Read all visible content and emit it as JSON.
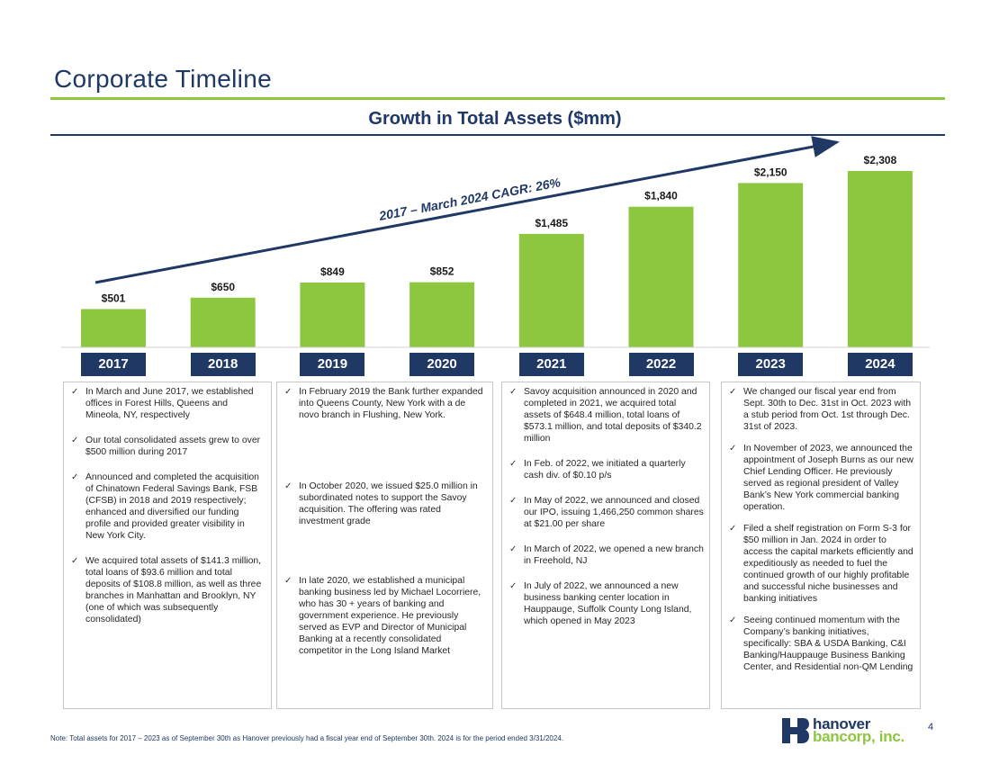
{
  "page": {
    "title": "Corporate Timeline",
    "page_number": "4"
  },
  "colors": {
    "bar": "#8dc63f",
    "navy": "#1f3864"
  },
  "chart_data": {
    "type": "bar",
    "title": "Growth in Total Assets ($mm)",
    "categories": [
      "2017",
      "2018",
      "2019",
      "2020",
      "2021",
      "2022",
      "2023",
      "2024"
    ],
    "values": [
      501,
      650,
      849,
      852,
      1485,
      1840,
      2150,
      2308
    ],
    "data_labels": [
      "$501",
      "$650",
      "$849",
      "$852",
      "$1,485",
      "$1,840",
      "$2,150",
      "$2,308"
    ],
    "annotation": "2017 – March 2024  CAGR: 26%",
    "ylim": [
      0,
      2400
    ],
    "grid": false
  },
  "columns": [
    {
      "items": [
        "In March and June 2017, we established offices in Forest Hills, Queens and Mineola, NY, respectively",
        "Our total consolidated assets grew to over $500 million during 2017",
        "Announced and completed the acquisition of Chinatown Federal Savings Bank, FSB (CFSB) in 2018 and 2019 respectively; enhanced and diversified our funding profile and provided greater visibility in New York City.",
        "We acquired total assets of $141.3 million, total loans of $93.6 million and total deposits of $108.8 million, as well as three branches in Manhattan and Brooklyn, NY (one of which was subsequently consolidated)"
      ]
    },
    {
      "items": [
        "In February 2019 the Bank further expanded into Queens County, New York with a de novo branch in Flushing, New York.",
        "In October 2020, we issued $25.0 million in subordinated notes to support the Savoy acquisition. The offering was rated investment grade",
        "In late 2020, we established a municipal banking business led by Michael Locorriere, who has 30 + years of banking and government experience. He previously served as EVP and Director of Municipal Banking at a recently consolidated competitor in the Long Island Market"
      ]
    },
    {
      "items": [
        "Savoy acquisition announced in 2020 and completed in 2021, we acquired total assets of $648.4 million, total loans of $573.1 million, and total deposits of $340.2 million",
        "In Feb. of 2022, we initiated a quarterly cash div. of $0.10 p/s",
        "In May of 2022, we announced and closed our IPO, issuing 1,466,250 common shares at $21.00 per share",
        "In March of 2022, we opened a new branch in Freehold, NJ",
        "In July of 2022, we announced a new business banking center location in Hauppauge, Suffolk County Long Island, which opened in May 2023"
      ]
    },
    {
      "items": [
        "We changed our fiscal year end from Sept. 30th to Dec. 31st in Oct. 2023 with a stub period from Oct. 1st through Dec. 31st of 2023.",
        "In November of 2023, we announced the appointment of Joseph Burns as our new Chief Lending Officer. He previously served as regional president of Valley Bank’s New York commercial banking operation.",
        "Filed a shelf registration on Form S-3 for $50 million in Jan. 2024 in order to access the capital markets efficiently and expeditiously as needed to fuel the continued growth of our highly profitable and successful niche businesses and banking initiatives",
        "Seeing continued momentum with the Company’s banking initiatives, specifically: SBA & USDA Banking, C&I Banking/Hauppauge Business Banking Center, and Residential non-QM  Lending"
      ]
    }
  ],
  "footnote": "Note: Total assets for 2017 – 2023 as of September 30th as Hanover previously had a fiscal year end of September 30th. 2024 is for the period ended 3/31/2024.",
  "logo": {
    "line1": "hanover",
    "line2": "bancorp, inc."
  }
}
